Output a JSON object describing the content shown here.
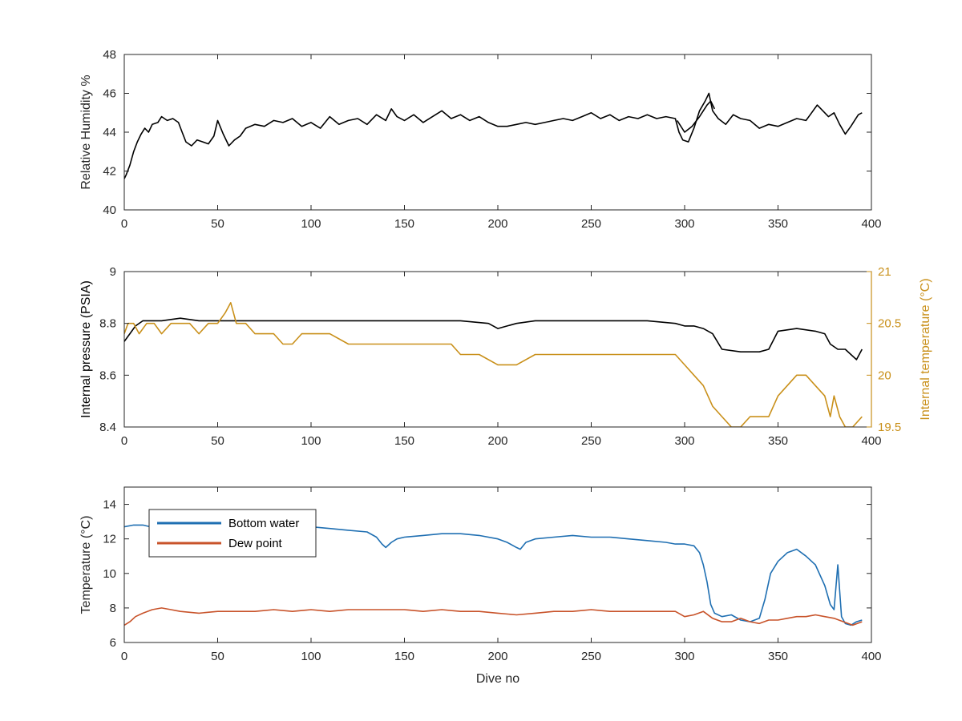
{
  "colors": {
    "black": "#000000",
    "internal_temp": "#c9901a",
    "bottom_water": "#1f6fb2",
    "dew_point": "#c8532a",
    "axis": "#262626",
    "frame": "#262626"
  },
  "chart_data": [
    {
      "type": "line",
      "xlabel": "",
      "ylabel": "Relative Humidity %",
      "xlim": [
        0,
        400
      ],
      "ylim": [
        40,
        48
      ],
      "xticks": [
        0,
        50,
        100,
        150,
        200,
        250,
        300,
        350,
        400
      ],
      "yticks": [
        40,
        42,
        44,
        46,
        48
      ],
      "grid": false,
      "series": [
        {
          "color": "black",
          "x": [
            0,
            1,
            3,
            5,
            7,
            9,
            11,
            13,
            15,
            18,
            20,
            23,
            26,
            29,
            31,
            33,
            36,
            39,
            42,
            45,
            48,
            50,
            53,
            56,
            59,
            62,
            65,
            70,
            75,
            80,
            85,
            90,
            95,
            100,
            105,
            110,
            115,
            120,
            125,
            130,
            135,
            140,
            143,
            146,
            150,
            155,
            160,
            165,
            170,
            175,
            180,
            185,
            190,
            195,
            200,
            205,
            210,
            215,
            220,
            225,
            230,
            235,
            240,
            245,
            250,
            255,
            260,
            265,
            270,
            275,
            280,
            285,
            290,
            295,
            297,
            299,
            302,
            305,
            308,
            311,
            313,
            315,
            318,
            322,
            326,
            330,
            335,
            340,
            345,
            350,
            355,
            360,
            365,
            368,
            371,
            374,
            377,
            380,
            383,
            386,
            389,
            391,
            393,
            395
          ],
          "y": [
            41.6,
            41.8,
            42.3,
            43.0,
            43.5,
            43.9,
            44.2,
            44.0,
            44.4,
            44.5,
            44.8,
            44.6,
            44.7,
            44.5,
            44.0,
            43.5,
            43.3,
            43.6,
            43.5,
            43.4,
            43.8,
            44.6,
            43.9,
            43.3,
            43.6,
            43.8,
            44.2,
            44.4,
            44.3,
            44.6,
            44.5,
            44.7,
            44.3,
            44.5,
            44.2,
            44.8,
            44.4,
            44.6,
            44.7,
            44.4,
            44.9,
            44.6,
            45.2,
            44.8,
            44.6,
            44.9,
            44.5,
            44.8,
            45.1,
            44.7,
            44.9,
            44.6,
            44.8,
            44.5,
            44.3,
            44.3,
            44.4,
            44.5,
            44.4,
            44.5,
            44.6,
            44.7,
            44.6,
            44.8,
            45.0,
            44.7,
            44.9,
            44.6,
            44.8,
            44.7,
            44.9,
            44.7,
            44.8,
            44.7,
            44.0,
            43.6,
            43.5,
            44.2,
            45.1,
            45.6,
            46.0,
            45.1,
            44.7,
            44.4,
            44.9,
            44.7,
            44.6,
            44.2,
            44.4,
            44.3,
            44.5,
            44.7,
            44.6,
            45.0,
            45.4,
            45.1,
            44.8,
            45.0,
            44.4,
            43.9,
            44.3,
            44.6,
            44.9,
            45.0
          ]
        },
        {
          "color": "black",
          "x": [
            296,
            300,
            304,
            308,
            312,
            314,
            316
          ],
          "y": [
            44.6,
            44.0,
            44.3,
            44.8,
            45.4,
            45.6,
            45.2
          ]
        }
      ]
    },
    {
      "type": "line",
      "xlabel": "",
      "ylabel": "Internal pressure (PSIA)",
      "ylabel_right": "Internal temperature (°C)",
      "xlim": [
        0,
        400
      ],
      "ylim": [
        8.4,
        9
      ],
      "ylim_right": [
        19.5,
        21
      ],
      "xticks": [
        0,
        50,
        100,
        150,
        200,
        250,
        300,
        350,
        400
      ],
      "yticks": [
        8.4,
        8.6,
        8.8,
        9
      ],
      "yticks_right": [
        19.5,
        20,
        20.5,
        21
      ],
      "ytick_labels": [
        "8.4",
        "8.6",
        "8.8",
        "9"
      ],
      "ytick_labels_right": [
        "19.5",
        "20",
        "20.5",
        "21"
      ],
      "grid": false,
      "series": [
        {
          "axis": "left",
          "color": "black",
          "x": [
            0,
            3,
            6,
            10,
            20,
            30,
            40,
            50,
            60,
            80,
            100,
            120,
            140,
            160,
            180,
            195,
            200,
            210,
            220,
            240,
            260,
            280,
            295,
            300,
            305,
            310,
            315,
            320,
            330,
            340,
            345,
            350,
            360,
            370,
            375,
            378,
            382,
            386,
            389,
            392,
            395
          ],
          "y": [
            8.73,
            8.76,
            8.79,
            8.81,
            8.81,
            8.82,
            8.81,
            8.81,
            8.81,
            8.81,
            8.81,
            8.81,
            8.81,
            8.81,
            8.81,
            8.8,
            8.78,
            8.8,
            8.81,
            8.81,
            8.81,
            8.81,
            8.8,
            8.79,
            8.79,
            8.78,
            8.76,
            8.7,
            8.69,
            8.69,
            8.7,
            8.77,
            8.78,
            8.77,
            8.76,
            8.72,
            8.7,
            8.7,
            8.68,
            8.66,
            8.7
          ]
        },
        {
          "axis": "right",
          "color": "internal_temp",
          "x": [
            0,
            2,
            5,
            8,
            12,
            16,
            20,
            25,
            30,
            35,
            40,
            45,
            50,
            54,
            57,
            60,
            65,
            70,
            75,
            80,
            85,
            90,
            95,
            100,
            110,
            120,
            130,
            140,
            150,
            160,
            170,
            175,
            180,
            190,
            200,
            210,
            220,
            230,
            240,
            250,
            260,
            270,
            280,
            285,
            290,
            295,
            300,
            305,
            310,
            315,
            320,
            325,
            330,
            335,
            340,
            345,
            350,
            355,
            360,
            365,
            370,
            375,
            378,
            380,
            383,
            386,
            390,
            395
          ],
          "y": [
            20.4,
            20.5,
            20.5,
            20.4,
            20.5,
            20.5,
            20.4,
            20.5,
            20.5,
            20.5,
            20.4,
            20.5,
            20.5,
            20.6,
            20.7,
            20.5,
            20.5,
            20.4,
            20.4,
            20.4,
            20.3,
            20.3,
            20.4,
            20.4,
            20.4,
            20.3,
            20.3,
            20.3,
            20.3,
            20.3,
            20.3,
            20.3,
            20.2,
            20.2,
            20.1,
            20.1,
            20.2,
            20.2,
            20.2,
            20.2,
            20.2,
            20.2,
            20.2,
            20.2,
            20.2,
            20.2,
            20.1,
            20.0,
            19.9,
            19.7,
            19.6,
            19.5,
            19.5,
            19.6,
            19.6,
            19.6,
            19.8,
            19.9,
            20.0,
            20.0,
            19.9,
            19.8,
            19.6,
            19.8,
            19.6,
            19.5,
            19.5,
            19.6
          ]
        }
      ]
    },
    {
      "type": "line",
      "xlabel": "Dive no",
      "ylabel": "Temperature (°C)",
      "xlim": [
        0,
        400
      ],
      "ylim": [
        6,
        15
      ],
      "xticks": [
        0,
        50,
        100,
        150,
        200,
        250,
        300,
        350,
        400
      ],
      "yticks": [
        6,
        8,
        10,
        12,
        14
      ],
      "grid": false,
      "legend": {
        "position": "top-left",
        "entries": [
          "Bottom water",
          "Dew point"
        ]
      },
      "series": [
        {
          "name": "Bottom water",
          "color": "bottom_water",
          "x": [
            0,
            5,
            10,
            14,
            20,
            30,
            40,
            50,
            60,
            70,
            80,
            90,
            100,
            110,
            120,
            130,
            135,
            138,
            140,
            143,
            146,
            150,
            160,
            170,
            180,
            190,
            200,
            205,
            210,
            212,
            215,
            220,
            230,
            240,
            250,
            260,
            270,
            280,
            290,
            295,
            300,
            305,
            308,
            310,
            312,
            314,
            316,
            320,
            325,
            330,
            335,
            340,
            343,
            346,
            350,
            355,
            360,
            365,
            370,
            375,
            378,
            380,
            382,
            384,
            386,
            389,
            392,
            395
          ],
          "y": [
            12.7,
            12.8,
            12.8,
            12.7,
            12.8,
            12.8,
            12.7,
            12.8,
            12.7,
            12.8,
            12.8,
            12.7,
            12.7,
            12.6,
            12.5,
            12.4,
            12.1,
            11.7,
            11.5,
            11.8,
            12.0,
            12.1,
            12.2,
            12.3,
            12.3,
            12.2,
            12.0,
            11.8,
            11.5,
            11.4,
            11.8,
            12.0,
            12.1,
            12.2,
            12.1,
            12.1,
            12.0,
            11.9,
            11.8,
            11.7,
            11.7,
            11.6,
            11.2,
            10.5,
            9.5,
            8.2,
            7.7,
            7.5,
            7.6,
            7.3,
            7.2,
            7.4,
            8.5,
            10.0,
            10.7,
            11.2,
            11.4,
            11.0,
            10.5,
            9.3,
            8.2,
            7.9,
            10.5,
            7.5,
            7.1,
            7.0,
            7.2,
            7.3
          ]
        },
        {
          "name": "Dew point",
          "color": "dew_point",
          "x": [
            0,
            3,
            6,
            10,
            15,
            20,
            25,
            30,
            40,
            50,
            60,
            70,
            80,
            90,
            100,
            110,
            120,
            130,
            140,
            150,
            160,
            170,
            180,
            190,
            200,
            210,
            220,
            230,
            240,
            250,
            260,
            270,
            280,
            290,
            295,
            300,
            305,
            310,
            315,
            320,
            325,
            330,
            335,
            340,
            345,
            350,
            355,
            360,
            365,
            370,
            375,
            380,
            385,
            390,
            395
          ],
          "y": [
            7.0,
            7.2,
            7.5,
            7.7,
            7.9,
            8.0,
            7.9,
            7.8,
            7.7,
            7.8,
            7.8,
            7.8,
            7.9,
            7.8,
            7.9,
            7.8,
            7.9,
            7.9,
            7.9,
            7.9,
            7.8,
            7.9,
            7.8,
            7.8,
            7.7,
            7.6,
            7.7,
            7.8,
            7.8,
            7.9,
            7.8,
            7.8,
            7.8,
            7.8,
            7.8,
            7.5,
            7.6,
            7.8,
            7.4,
            7.2,
            7.2,
            7.4,
            7.2,
            7.1,
            7.3,
            7.3,
            7.4,
            7.5,
            7.5,
            7.6,
            7.5,
            7.4,
            7.2,
            7.0,
            7.2
          ]
        }
      ]
    }
  ]
}
